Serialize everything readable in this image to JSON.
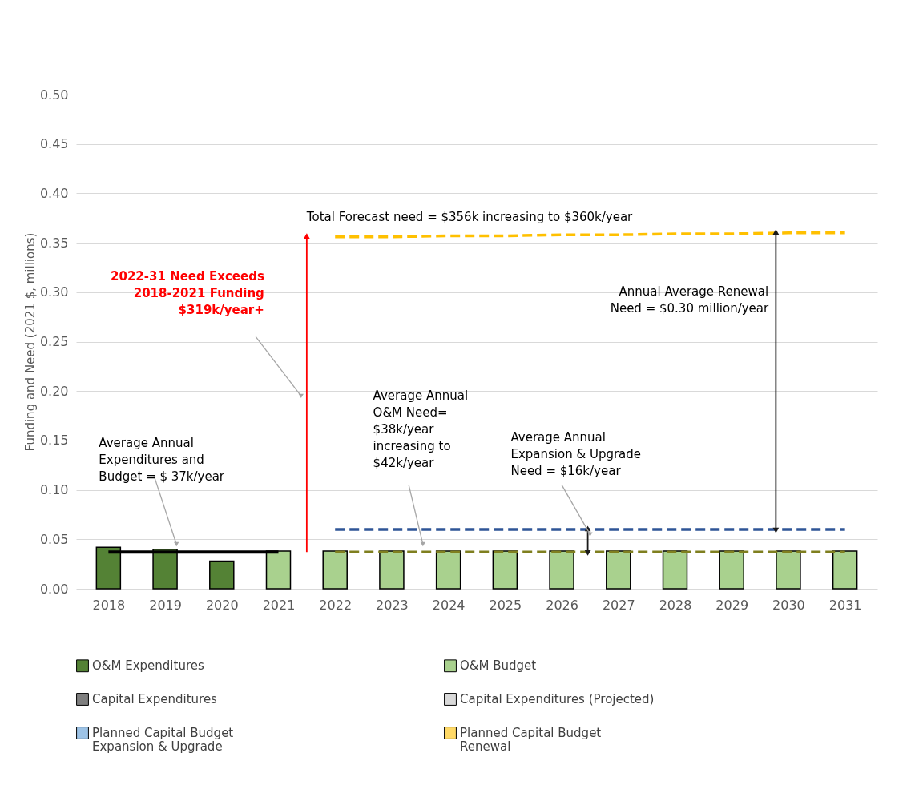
{
  "chart_data": {
    "type": "bar",
    "ylabel": "Funding and Need (2021 $, millions)",
    "categories": [
      "2018",
      "2019",
      "2020",
      "2021",
      "2022",
      "2023",
      "2024",
      "2025",
      "2026",
      "2027",
      "2028",
      "2029",
      "2030",
      "2031"
    ],
    "ylim": [
      0,
      0.5
    ],
    "yticks": [
      {
        "value": 0,
        "label": "0.00"
      },
      {
        "value": 0.05,
        "label": "0.05"
      },
      {
        "value": 0.1,
        "label": "0.10"
      },
      {
        "value": 0.15,
        "label": "0.15"
      },
      {
        "value": 0.2,
        "label": "0.20"
      },
      {
        "value": 0.25,
        "label": "0.25"
      },
      {
        "value": 0.3,
        "label": "0.30"
      },
      {
        "value": 0.35,
        "label": "0.35"
      },
      {
        "value": 0.4,
        "label": "0.40"
      },
      {
        "value": 0.45,
        "label": "0.45"
      },
      {
        "value": 0.5,
        "label": "0.50"
      }
    ],
    "grid": "y",
    "legend": "bottom",
    "series": [
      {
        "name": "O&M Expenditures",
        "color": "#548235",
        "values": [
          0.042,
          0.04,
          0.028,
          null,
          null,
          null,
          null,
          null,
          null,
          null,
          null,
          null,
          null,
          null
        ]
      },
      {
        "name": "O&M Budget",
        "color": "#a9d18e",
        "values": [
          null,
          null,
          null,
          0.038,
          0.038,
          0.038,
          0.038,
          0.038,
          0.038,
          0.038,
          0.038,
          0.038,
          0.038,
          0.038
        ]
      },
      {
        "name": "Capital Expenditures",
        "color": "#7f7f7f",
        "values": [
          null,
          null,
          null,
          null,
          null,
          null,
          null,
          null,
          null,
          null,
          null,
          null,
          null,
          null
        ]
      },
      {
        "name": "Capital Expenditures (Projected)",
        "color": "#d9d9d9",
        "values": [
          null,
          null,
          null,
          null,
          null,
          null,
          null,
          null,
          null,
          null,
          null,
          null,
          null,
          null
        ]
      },
      {
        "name": "Planned Capital Budget\nExpansion & Upgrade",
        "color": "#9dc3e6",
        "values": [
          null,
          null,
          null,
          null,
          null,
          null,
          null,
          null,
          null,
          null,
          null,
          null,
          null,
          null
        ]
      },
      {
        "name": "Planned Capital Budget\nRenewal",
        "color": "#ffd966",
        "values": [
          null,
          null,
          null,
          null,
          null,
          null,
          null,
          null,
          null,
          null,
          null,
          null,
          null,
          null
        ]
      },
      {
        "type": "line",
        "color": "#000000",
        "line_style": "solid",
        "values": [
          0.037,
          0.037,
          0.037,
          0.037,
          null,
          null,
          null,
          null,
          null,
          null,
          null,
          null,
          null,
          null
        ]
      },
      {
        "type": "line",
        "color": "#ffc000",
        "line_style": "dashed",
        "values": [
          null,
          null,
          null,
          null,
          0.356,
          0.356,
          0.357,
          0.357,
          0.358,
          0.358,
          0.359,
          0.359,
          0.36,
          0.36
        ]
      },
      {
        "type": "line",
        "color": "#2f5597",
        "line_style": "dashed",
        "values": [
          null,
          null,
          null,
          null,
          0.06,
          0.06,
          0.06,
          0.06,
          0.06,
          0.06,
          0.06,
          0.06,
          0.06,
          0.06
        ]
      },
      {
        "type": "line",
        "color": "#7f7f1f",
        "line_style": "dashed",
        "values": [
          null,
          null,
          null,
          null,
          0.037,
          0.037,
          0.037,
          0.037,
          0.037,
          0.037,
          0.037,
          0.037,
          0.037,
          0.037
        ]
      }
    ],
    "annotations": [
      "Total Forecast need = $356k increasing to $360k/year",
      "2022-31 Need Exceeds\n2018-2021 Funding\n$319k/year+",
      "Annual Average Renewal\nNeed = $0.30 million/year",
      "Average Annual\nExpenditures and\nBudget = $ 37k/year",
      "Average Annual\nO&M Need=\n$38k/year\nincreasing to\n$42k/year",
      "Average Annual\nExpansion & Upgrade\nNeed = $16k/year"
    ]
  }
}
